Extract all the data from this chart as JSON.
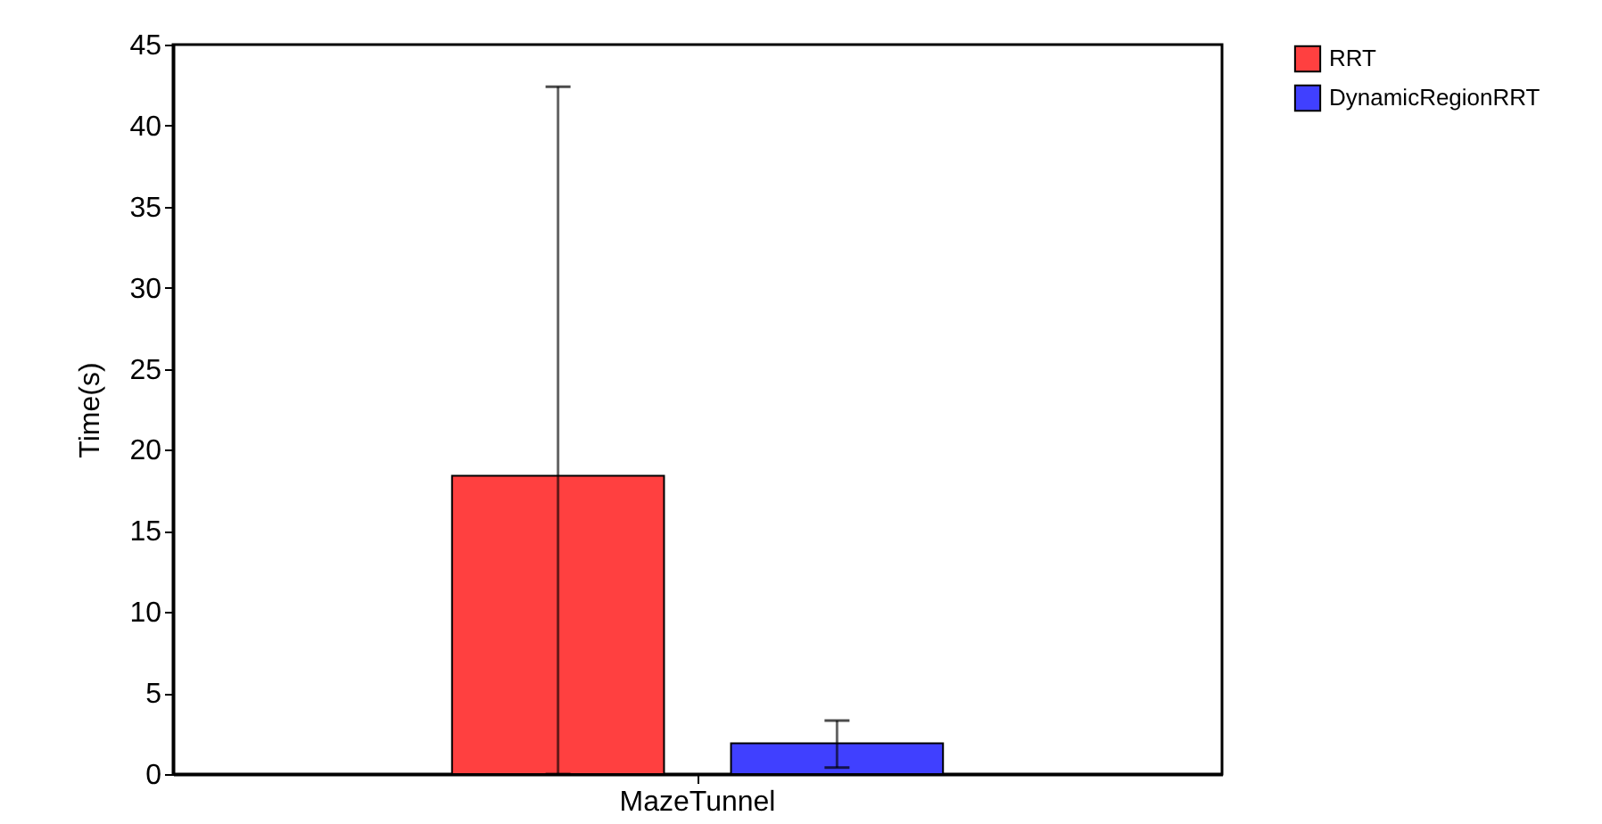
{
  "chart_data": {
    "type": "bar",
    "ylabel": "Time(s)",
    "categories": [
      "MazeTunnel"
    ],
    "series": [
      {
        "name": "RRT",
        "color": "#ff4040",
        "values": [
          18.4
        ],
        "errors": [
          [
            0,
            42.4
          ]
        ]
      },
      {
        "name": "DynamicRegionRRT",
        "color": "#4040ff",
        "values": [
          1.9
        ],
        "errors": [
          [
            0.4,
            3.3
          ]
        ]
      }
    ],
    "ylim": [
      0,
      45
    ],
    "yticks": [
      0,
      5,
      10,
      15,
      20,
      25,
      30,
      35,
      40,
      45
    ],
    "grid": false,
    "legend": "top right"
  }
}
